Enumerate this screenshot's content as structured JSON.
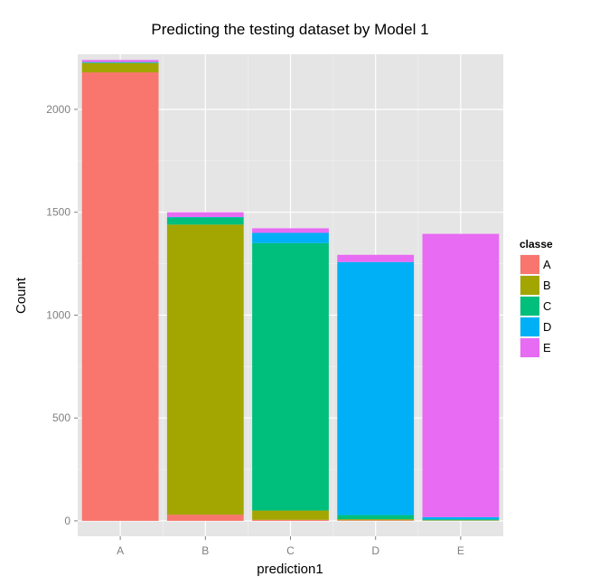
{
  "chart_data": {
    "type": "bar",
    "stacked": true,
    "title": "Predicting the testing dataset by Model 1",
    "xlabel": "prediction1",
    "ylabel": "Count",
    "ylim": [
      -75,
      2268
    ],
    "yticks": [
      0,
      500,
      1000,
      1500,
      2000
    ],
    "grid": true,
    "categories": [
      "A",
      "B",
      "C",
      "D",
      "E"
    ],
    "legend": {
      "title": "classe",
      "position": "right"
    },
    "series": [
      {
        "name": "A",
        "color": "#F8766D",
        "values": [
          2180,
          30,
          5,
          3,
          1
        ]
      },
      {
        "name": "B",
        "color": "#A3A500",
        "values": [
          45,
          1410,
          45,
          5,
          2
        ]
      },
      {
        "name": "C",
        "color": "#00BF7D",
        "values": [
          3,
          35,
          1300,
          20,
          5
        ]
      },
      {
        "name": "D",
        "color": "#00B0F6",
        "values": [
          2,
          2,
          50,
          1230,
          10
        ]
      },
      {
        "name": "E",
        "color": "#E76BF3",
        "values": [
          10,
          23,
          22,
          35,
          1377
        ]
      }
    ]
  }
}
